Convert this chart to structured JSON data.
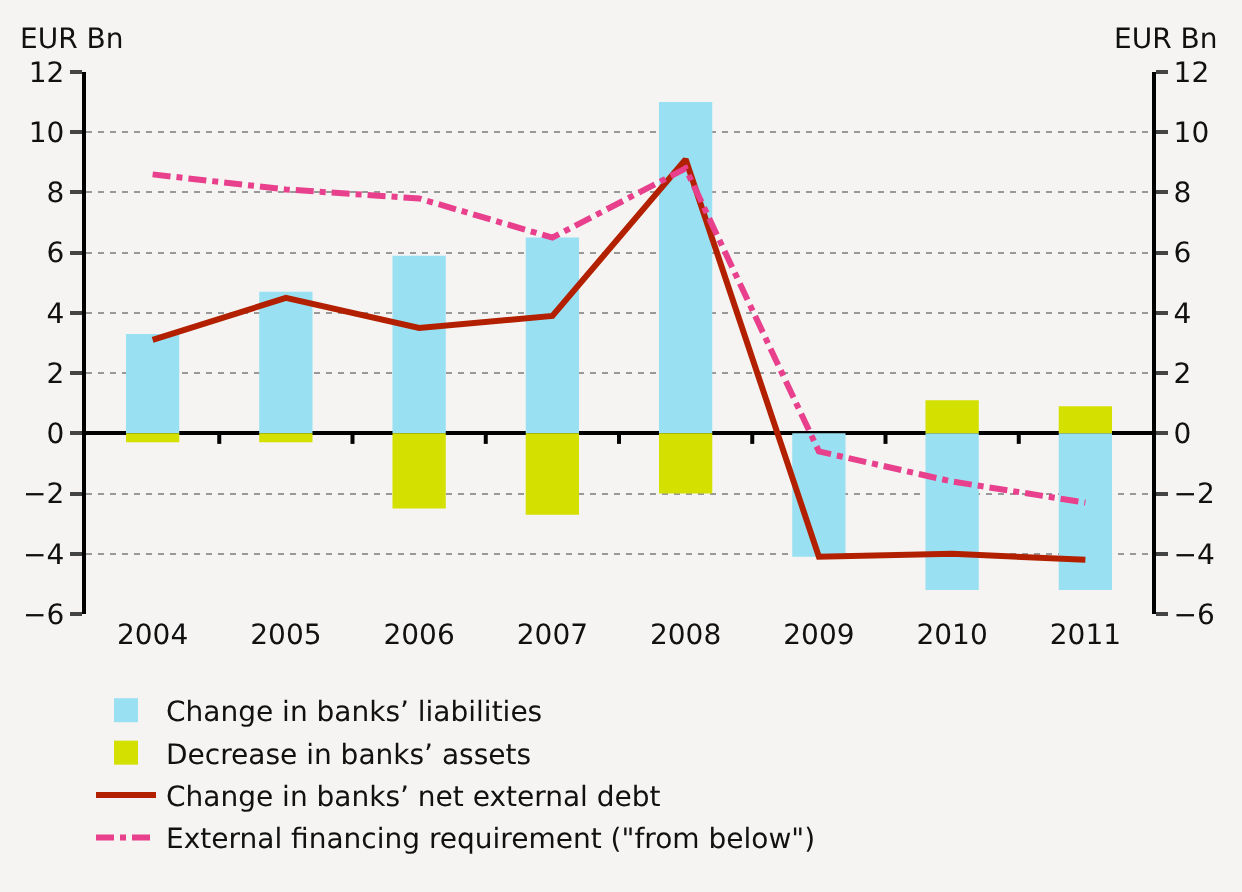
{
  "chart_data": {
    "type": "bar",
    "ylabel": "EUR Bn",
    "y2label": "EUR Bn",
    "categories": [
      "2004",
      "2005",
      "2006",
      "2007",
      "2008",
      "2009",
      "2010",
      "2011"
    ],
    "stacked": true,
    "series": [
      {
        "name": "Change in banks’ liabilities",
        "color": "#99e0f2",
        "values": [
          3.3,
          4.7,
          5.9,
          6.5,
          11.0,
          -4.1,
          -5.2,
          -5.2
        ]
      },
      {
        "name": "Decrease in banks’ assets",
        "color": "#d4e000",
        "values": [
          -0.3,
          -0.3,
          -2.5,
          -2.7,
          -2.0,
          null,
          1.1,
          0.9
        ]
      },
      {
        "name": "Change in banks’ net external debt",
        "type": "line",
        "color": "#b22000",
        "line_style": "solid",
        "values": [
          3.1,
          4.5,
          3.5,
          3.9,
          9.1,
          -4.1,
          -4.0,
          -4.2
        ]
      },
      {
        "name": "External financing requirement (\"from below\")",
        "type": "line",
        "color": "#e8408c",
        "line_style": "dashdot",
        "values": [
          8.6,
          8.1,
          7.8,
          6.5,
          8.8,
          -0.6,
          -1.6,
          -2.3
        ]
      }
    ],
    "ylim": [
      -6,
      12
    ],
    "yticks": [
      -6,
      -4,
      -2,
      0,
      2,
      4,
      6,
      8,
      10,
      12
    ],
    "y2lim": [
      -6,
      12
    ],
    "y2ticks": [
      -6,
      -4,
      -2,
      0,
      2,
      4,
      6,
      8,
      10,
      12
    ],
    "grid": "y",
    "legend": "bottom",
    "marker": "none"
  }
}
